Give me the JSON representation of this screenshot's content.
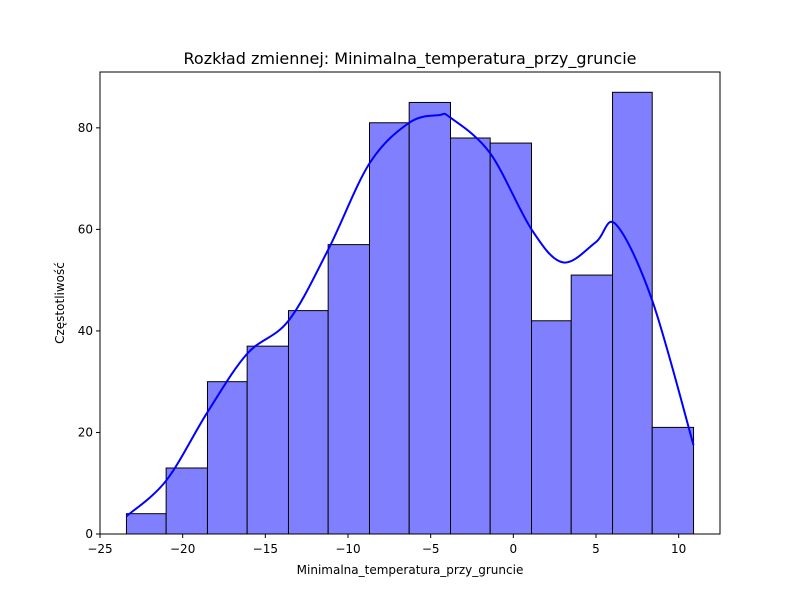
{
  "chart_data": {
    "type": "histogram",
    "title": "Rozkład zmiennej: Minimalna_temperatura_przy_gruncie",
    "xlabel": "Minimalna_temperatura_przy_gruncie",
    "ylabel": "Częstotliwość",
    "xlim": [
      -25,
      12.5
    ],
    "ylim": [
      0,
      91
    ],
    "xticks": [
      -25,
      -20,
      -15,
      -10,
      -5,
      0,
      5,
      10
    ],
    "yticks": [
      0,
      20,
      40,
      60,
      80
    ],
    "bins": [
      {
        "x0": -23.4,
        "x1": -21.0,
        "count": 4
      },
      {
        "x0": -21.0,
        "x1": -18.5,
        "count": 13
      },
      {
        "x0": -18.5,
        "x1": -16.1,
        "count": 30
      },
      {
        "x0": -16.1,
        "x1": -13.6,
        "count": 37
      },
      {
        "x0": -13.6,
        "x1": -11.2,
        "count": 44
      },
      {
        "x0": -11.2,
        "x1": -8.7,
        "count": 57
      },
      {
        "x0": -8.7,
        "x1": -6.3,
        "count": 81
      },
      {
        "x0": -6.3,
        "x1": -3.8,
        "count": 85
      },
      {
        "x0": -3.8,
        "x1": -1.4,
        "count": 78
      },
      {
        "x0": -1.4,
        "x1": 1.1,
        "count": 77
      },
      {
        "x0": 1.1,
        "x1": 3.5,
        "count": 42
      },
      {
        "x0": 3.5,
        "x1": 6.0,
        "count": 51
      },
      {
        "x0": 6.0,
        "x1": 8.4,
        "count": 87
      },
      {
        "x0": 8.4,
        "x1": 10.9,
        "count": 21
      }
    ],
    "kde": {
      "x": [
        -23.4,
        -21.0,
        -18.5,
        -16.1,
        -13.6,
        -11.2,
        -8.7,
        -6.3,
        -4.5,
        -3.8,
        -1.4,
        1.1,
        3.0,
        5.0,
        6.2,
        8.4,
        10.9
      ],
      "y": [
        3.5,
        10.5,
        24,
        35.5,
        42,
        56,
        73,
        81,
        82.5,
        82,
        75,
        60,
        53.5,
        57.5,
        61,
        46,
        17.5
      ]
    },
    "grid": false,
    "colors": {
      "bar_fill": "#8080ff",
      "bar_edge": "#000000",
      "kde_line": "#0000ff"
    }
  }
}
